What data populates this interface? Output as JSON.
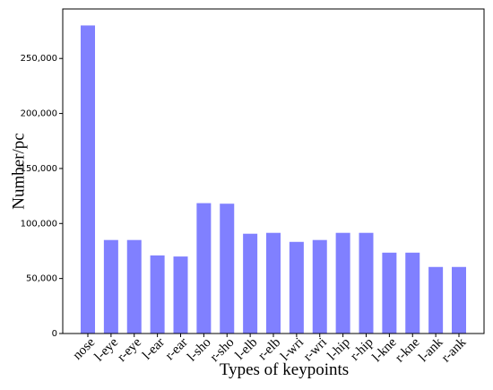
{
  "chart_data": {
    "type": "bar",
    "xlabel": "Types of keypoints",
    "ylabel": "Number/pc",
    "categories": [
      "nose",
      "l-eye",
      "r-eye",
      "l-ear",
      "r-ear",
      "l-sho",
      "r-sho",
      "l-elb",
      "r-elb",
      "l-wri",
      "r-wri",
      "l-hip",
      "r-hip",
      "l-kne",
      "r-kne",
      "l-ank",
      "r-ank"
    ],
    "values": [
      280000,
      85000,
      85000,
      71000,
      70000,
      118500,
      118000,
      90700,
      91500,
      83300,
      85000,
      91500,
      91500,
      73500,
      73500,
      60500,
      60500
    ],
    "color": "#8080ff",
    "ylim": [
      0,
      295000
    ],
    "yticks": [
      0,
      {
        "value": 50000,
        "label": "50,000"
      },
      {
        "value": 100000,
        "label": "100,000"
      },
      {
        "value": 150000,
        "label": "150,000"
      },
      {
        "value": 200000,
        "label": "200,000"
      },
      {
        "value": 250000,
        "label": "250,000"
      }
    ]
  }
}
